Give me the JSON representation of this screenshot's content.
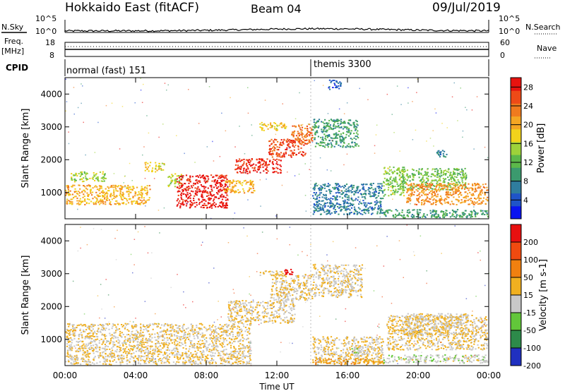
{
  "header": {
    "station": "Hokkaido East (fitACF)",
    "beam": "Beam 04",
    "date": "09/Jul/2019"
  },
  "aux_panels": {
    "nsky_label": "N.Sky",
    "nsky_ticks": [
      "10^5",
      "10^0"
    ],
    "nsearch_label": "N.Search",
    "nsearch_ticks": [
      "10^5",
      "10^0"
    ],
    "freq_label_line1": "Freq.",
    "freq_label_line2": "[MHz]",
    "freq_ticks": [
      "18",
      "8"
    ],
    "nave_label": "Nave",
    "nave_ticks": [
      "60",
      "0"
    ],
    "cpid_label": "CPID",
    "cpid_segments": [
      {
        "name": "normal (fast) 151",
        "start_hour": 0
      },
      {
        "name": "themis 3300",
        "start_hour": 14
      }
    ]
  },
  "chart_data": [
    {
      "type": "heatmap",
      "name": "power",
      "x_unit": "hours UT",
      "xlim": [
        0,
        24
      ],
      "ylim": [
        200,
        4500
      ],
      "ylabel": "Slant Range [km]",
      "y_ticks": [
        1000,
        2000,
        3000,
        4000
      ],
      "colorbar": {
        "label": "Power [dB]",
        "range": [
          0,
          30
        ],
        "ticks": [
          4,
          8,
          12,
          16,
          20,
          24,
          28
        ],
        "colors": [
          "#0a14f0",
          "#1f54c8",
          "#2f7d9e",
          "#3b9a6e",
          "#5cb84a",
          "#9ed23a",
          "#f2d21b",
          "#f5a623",
          "#f07a1e",
          "#ee4a17",
          "#e8130f"
        ]
      },
      "blobs": [
        {
          "x0": 0.0,
          "x1": 4.8,
          "y0": 650,
          "y1": 1250,
          "v": 20
        },
        {
          "x0": 0.3,
          "x1": 2.3,
          "y0": 1350,
          "y1": 1650,
          "v": 15
        },
        {
          "x0": 4.5,
          "x1": 5.6,
          "y0": 1650,
          "y1": 1950,
          "v": 18
        },
        {
          "x0": 5.8,
          "x1": 6.6,
          "y0": 1200,
          "y1": 1600,
          "v": 15
        },
        {
          "x0": 6.3,
          "x1": 9.2,
          "y0": 550,
          "y1": 1550,
          "v": 29
        },
        {
          "x0": 9.0,
          "x1": 10.7,
          "y0": 1000,
          "y1": 1400,
          "v": 20
        },
        {
          "x0": 9.6,
          "x1": 12.2,
          "y0": 1600,
          "y1": 2050,
          "v": 28
        },
        {
          "x0": 11.5,
          "x1": 13.6,
          "y0": 2100,
          "y1": 2650,
          "v": 26
        },
        {
          "x0": 12.8,
          "x1": 14.0,
          "y0": 2500,
          "y1": 3100,
          "v": 24
        },
        {
          "x0": 11.0,
          "x1": 12.6,
          "y0": 2900,
          "y1": 3150,
          "v": 18
        },
        {
          "x0": 14.0,
          "x1": 16.6,
          "y0": 2400,
          "y1": 3250,
          "v": 10
        },
        {
          "x0": 14.0,
          "x1": 18.0,
          "y0": 350,
          "y1": 1300,
          "v": 7
        },
        {
          "x0": 18.0,
          "x1": 19.2,
          "y0": 900,
          "y1": 1800,
          "v": 14
        },
        {
          "x0": 19.0,
          "x1": 22.7,
          "y0": 1100,
          "y1": 1750,
          "v": 13
        },
        {
          "x0": 19.3,
          "x1": 24.0,
          "y0": 650,
          "y1": 1300,
          "v": 22
        },
        {
          "x0": 18.0,
          "x1": 24.0,
          "y0": 250,
          "y1": 500,
          "v": 10
        },
        {
          "x0": 21.0,
          "x1": 21.6,
          "y0": 2100,
          "y1": 2300,
          "v": 8
        },
        {
          "x0": 14.9,
          "x1": 15.6,
          "y0": 4150,
          "y1": 4450,
          "v": 5
        }
      ]
    },
    {
      "type": "heatmap",
      "name": "velocity",
      "x_unit": "hours UT",
      "xlim": [
        0,
        24
      ],
      "ylim": [
        200,
        4500
      ],
      "ylabel": "Slant Range [km]",
      "y_ticks": [
        1000,
        2000,
        3000,
        4000
      ],
      "xlabel": "Time UT",
      "x_ticks": [
        "00:00",
        "04:00",
        "08:00",
        "12:00",
        "16:00",
        "20:00",
        "00:00"
      ],
      "colorbar": {
        "label": "Velocity [m s-1]",
        "range": [
          -250,
          250
        ],
        "tick_labels": [
          "200",
          "100",
          "50",
          "15",
          "-15",
          "-50",
          "-100",
          "-200"
        ],
        "colors": [
          "#2030c0",
          "#2d8a4a",
          "#62c63a",
          "#c8c8c8",
          "#f0b020",
          "#f08010",
          "#f04a10",
          "#e81010"
        ]
      },
      "blobs": [
        {
          "x0": 0.0,
          "x1": 10.5,
          "y0": 250,
          "y1": 1500,
          "v": 0
        },
        {
          "x0": 9.2,
          "x1": 13.0,
          "y0": 1500,
          "y1": 2200,
          "v": 0
        },
        {
          "x0": 11.6,
          "x1": 14.0,
          "y0": 2200,
          "y1": 3000,
          "v": 0
        },
        {
          "x0": 14.0,
          "x1": 16.8,
          "y0": 2300,
          "y1": 3300,
          "v": -10
        },
        {
          "x0": 11.0,
          "x1": 12.3,
          "y0": 2950,
          "y1": 3100,
          "v": 0
        },
        {
          "x0": 12.4,
          "x1": 12.9,
          "y0": 3000,
          "y1": 3150,
          "v": 240
        },
        {
          "x0": 14.0,
          "x1": 18.0,
          "y0": 300,
          "y1": 1100,
          "v": 0
        },
        {
          "x0": 14.0,
          "x1": 18.0,
          "y0": 250,
          "y1": 450,
          "v": 45
        },
        {
          "x0": 16.2,
          "x1": 17.2,
          "y0": 500,
          "y1": 750,
          "v": -40
        },
        {
          "x0": 18.0,
          "x1": 24.0,
          "y0": 300,
          "y1": 550,
          "v": -35
        },
        {
          "x0": 18.2,
          "x1": 24.0,
          "y0": 700,
          "y1": 1750,
          "v": 0
        },
        {
          "x0": 19.2,
          "x1": 22.8,
          "y0": 1150,
          "y1": 1800,
          "v": 0
        }
      ]
    }
  ]
}
